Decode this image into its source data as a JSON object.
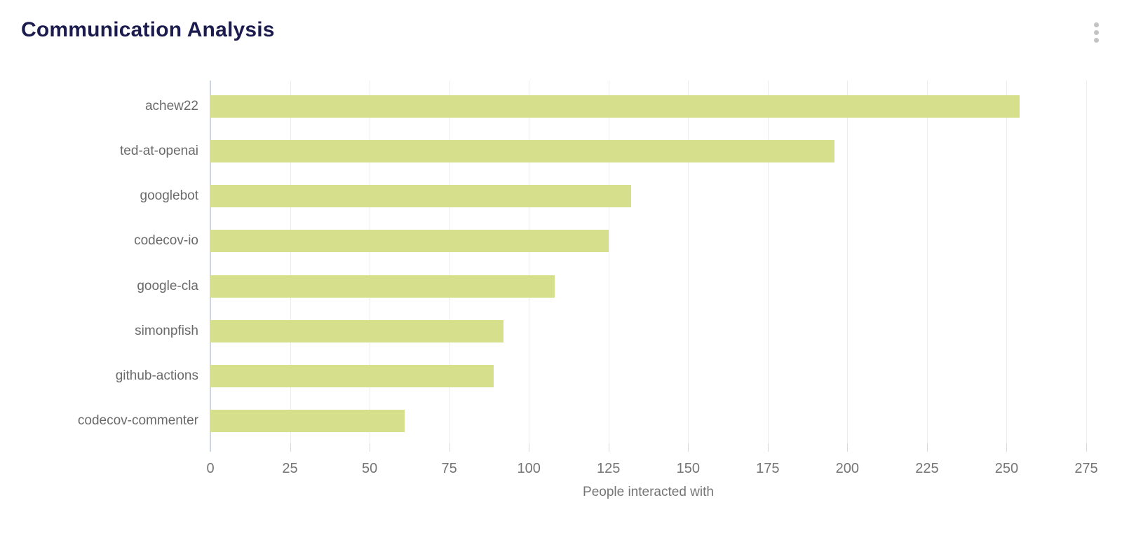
{
  "header": {
    "title": "Communication Analysis",
    "menu_icon": "kebab-vertical-icon"
  },
  "colors": {
    "background": "#ffffff",
    "title": "#1b1b4d",
    "bar": "#d5df8c",
    "grid": "#ececec",
    "zero_line": "#ccd6eb",
    "tick_mark": "#d9d9d9",
    "y_label_text": "#6a6a6a",
    "axis_text": "#757575",
    "axis_title_text": "#757575",
    "menu_dots": "#c3c3c3"
  },
  "chart_data": {
    "type": "bar",
    "orientation": "horizontal",
    "title": "Communication Analysis",
    "categories": [
      "achew22",
      "ted-at-openai",
      "googlebot",
      "codecov-io",
      "google-cla",
      "simonpfish",
      "github-actions",
      "codecov-commenter"
    ],
    "values": [
      254,
      196,
      132,
      125,
      108,
      92,
      89,
      61
    ],
    "series_name": "People interacted with",
    "xlabel": "People interacted with",
    "ylabel": "",
    "xlim": [
      0,
      275
    ],
    "xticks": [
      0,
      25,
      50,
      75,
      100,
      125,
      150,
      175,
      200,
      225,
      250,
      275
    ],
    "grid": "vertical",
    "legend": "none"
  }
}
